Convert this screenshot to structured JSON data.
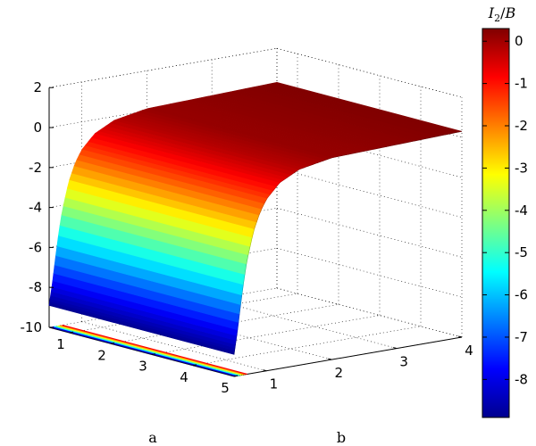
{
  "chart_data": {
    "type": "surface",
    "colorbar_label": "I_2/B",
    "xlabel": "a",
    "ylabel": "b",
    "x_ticks": [
      "1",
      "2",
      "3",
      "4",
      "5"
    ],
    "y_ticks": [
      "1",
      "2",
      "3",
      "4"
    ],
    "z_ticks": [
      "-10",
      "-8",
      "-6",
      "-4",
      "-2",
      "0",
      "2"
    ],
    "colorbar_ticks": [
      "0",
      "-1",
      "-2",
      "-3",
      "-4",
      "-5",
      "-6",
      "-7",
      "-8"
    ],
    "xlim": [
      0.5,
      5
    ],
    "ylim": [
      0.5,
      4
    ],
    "zlim": [
      -10,
      2
    ],
    "colorbar_range": [
      -8.9,
      0.3
    ],
    "surface_sample": {
      "b": [
        0.5,
        0.55,
        0.6,
        0.65,
        0.7,
        0.8,
        0.9,
        1.0,
        1.2,
        1.5,
        2.0,
        4.0
      ],
      "value": [
        -8.9,
        -7.8,
        -6.5,
        -5.3,
        -4.3,
        -2.9,
        -2.0,
        -1.4,
        -0.7,
        -0.2,
        0.1,
        0.3
      ]
    },
    "colormap": "jet",
    "grid": true
  }
}
